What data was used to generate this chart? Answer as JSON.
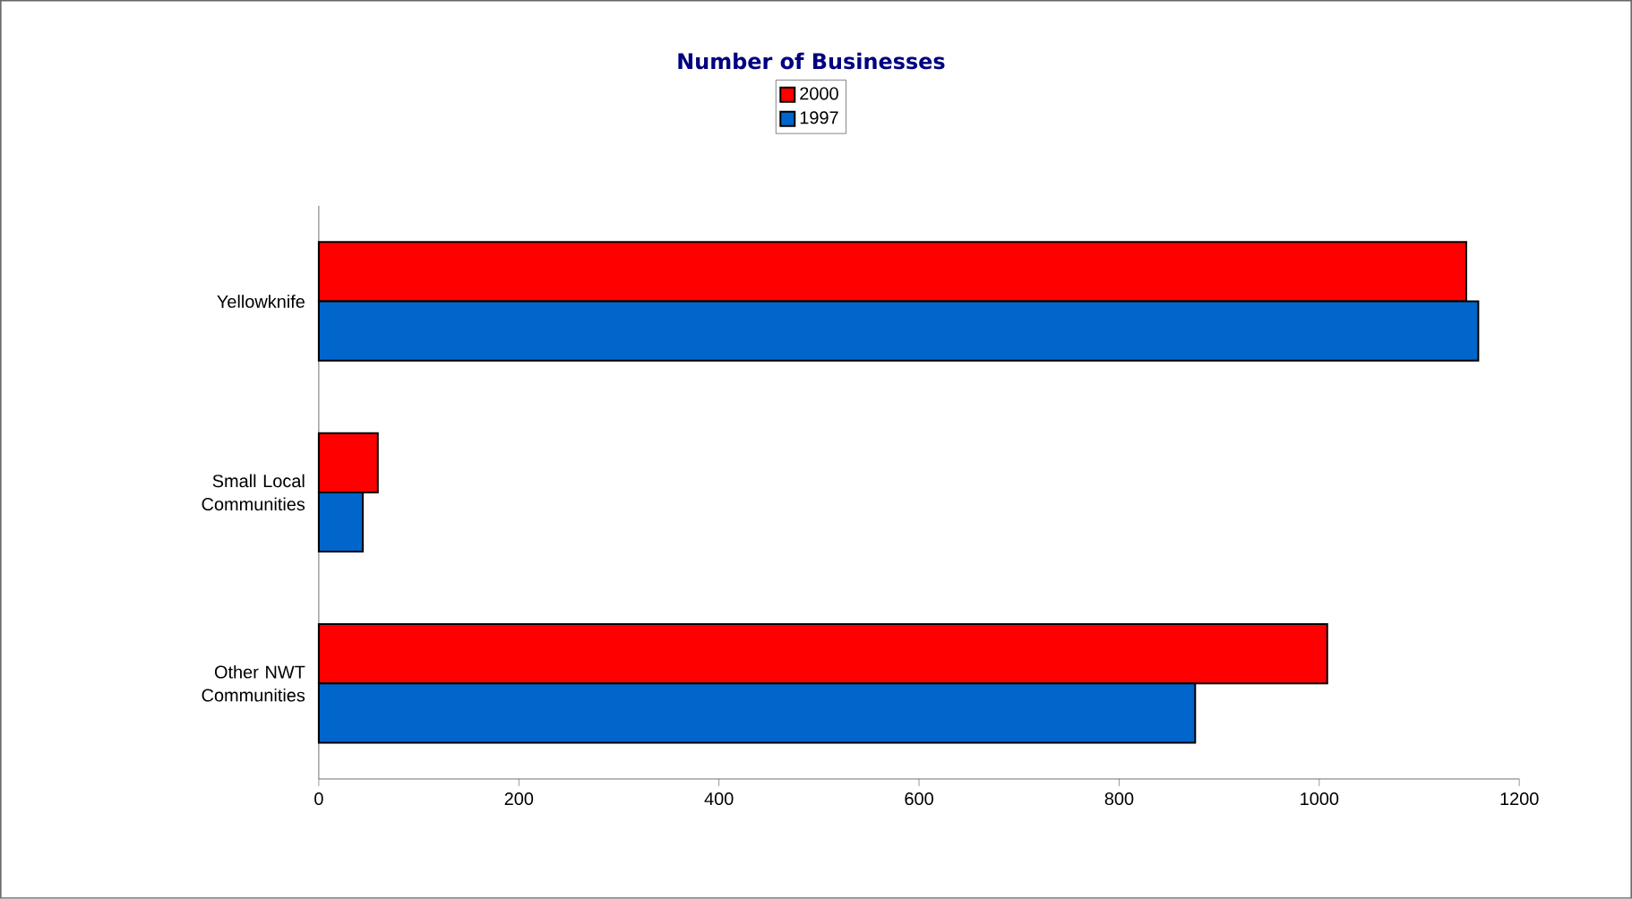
{
  "chart_data": {
    "type": "bar",
    "orientation": "horizontal",
    "title": "Number of Businesses",
    "categories": [
      "Yellowknife",
      "Small Local Communities",
      "Other NWT Communities"
    ],
    "series": [
      {
        "name": "2000",
        "color": "#ff0000",
        "values": [
          1147,
          59,
          1008
        ]
      },
      {
        "name": "1997",
        "color": "#0066cc",
        "values": [
          1159,
          44,
          876
        ]
      }
    ],
    "xlim": [
      0,
      1200
    ],
    "xticks": [
      0,
      200,
      400,
      600,
      800,
      1000,
      1200
    ],
    "grid": false,
    "legend": "top"
  }
}
